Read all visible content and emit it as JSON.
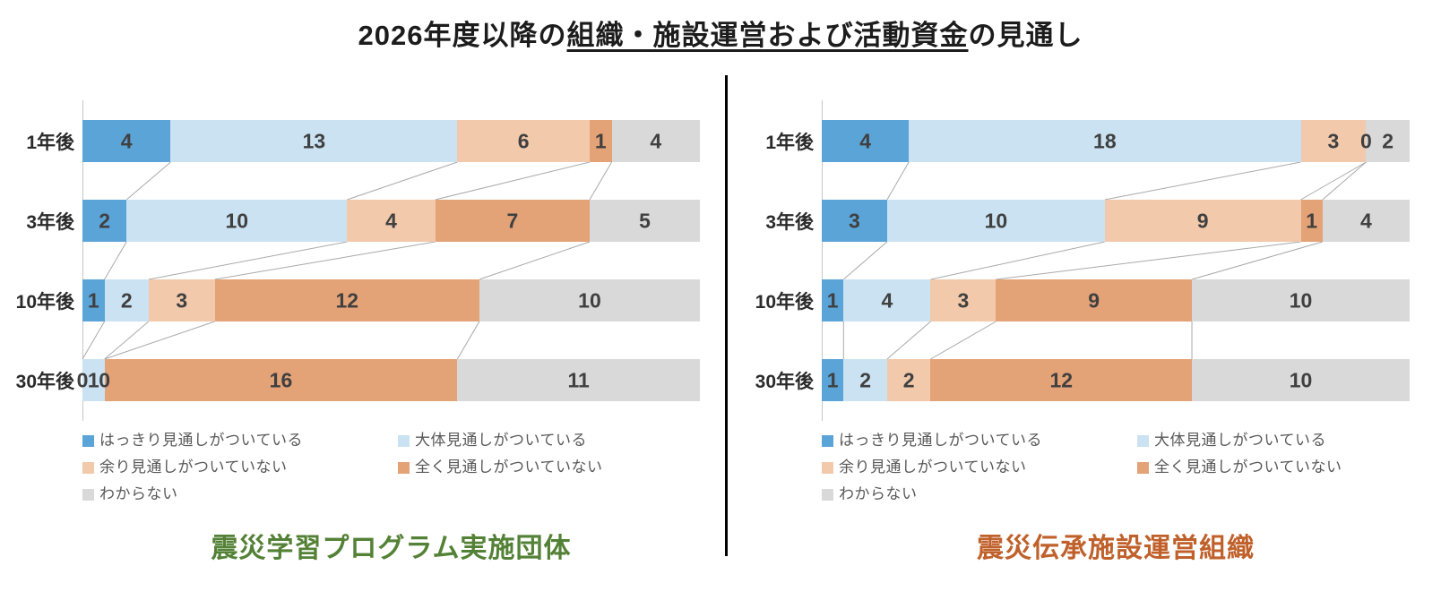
{
  "title": {
    "prefix": "2026年度以降の",
    "underlined": "組織・施設運営および活動資金",
    "suffix": "の見通し"
  },
  "legend": {
    "items": [
      {
        "label": "はっきり見通しがついている",
        "color": "#5BA4D8"
      },
      {
        "label": "大体見通しがついている",
        "color": "#CAE2F2"
      },
      {
        "label": "余り見通しがついていない",
        "color": "#F2C9AB"
      },
      {
        "label": "全く見通しがついていない",
        "color": "#E4A277"
      },
      {
        "label": "わからない",
        "color": "#D9D9D9"
      }
    ]
  },
  "chart_data": [
    {
      "type": "bar",
      "orientation": "horizontal",
      "stacked": true,
      "title": "震災学習プログラム実施団体",
      "title_color": "#538135",
      "categories": [
        "1年後",
        "3年後",
        "10年後",
        "30年後"
      ],
      "series": [
        {
          "name": "はっきり見通しがついている",
          "color": "#5BA4D8",
          "values": [
            4,
            2,
            1,
            0
          ]
        },
        {
          "name": "大体見通しがついている",
          "color": "#CAE2F2",
          "values": [
            13,
            10,
            2,
            1
          ]
        },
        {
          "name": "余り見通しがついていない",
          "color": "#F2C9AB",
          "values": [
            6,
            4,
            3,
            0
          ]
        },
        {
          "name": "全く見通しがついていない",
          "color": "#E4A277",
          "values": [
            1,
            7,
            12,
            16
          ]
        },
        {
          "name": "わからない",
          "color": "#D9D9D9",
          "values": [
            4,
            5,
            10,
            11
          ]
        }
      ],
      "row_totals": [
        28,
        28,
        28,
        28
      ],
      "data_labels": true,
      "series_connector_lines": true,
      "legend_position": "bottom"
    },
    {
      "type": "bar",
      "orientation": "horizontal",
      "stacked": true,
      "title": "震災伝承施設運営組織",
      "title_color": "#C0612B",
      "categories": [
        "1年後",
        "3年後",
        "10年後",
        "30年後"
      ],
      "series": [
        {
          "name": "はっきり見通しがついている",
          "color": "#5BA4D8",
          "values": [
            4,
            3,
            1,
            1
          ]
        },
        {
          "name": "大体見通しがついている",
          "color": "#CAE2F2",
          "values": [
            18,
            10,
            4,
            2
          ]
        },
        {
          "name": "余り見通しがついていない",
          "color": "#F2C9AB",
          "values": [
            3,
            9,
            3,
            2
          ]
        },
        {
          "name": "全く見通しがついていない",
          "color": "#E4A277",
          "values": [
            0,
            1,
            9,
            12
          ]
        },
        {
          "name": "わからない",
          "color": "#D9D9D9",
          "values": [
            2,
            4,
            10,
            10
          ]
        }
      ],
      "row_totals": [
        27,
        27,
        27,
        27
      ],
      "data_labels": true,
      "series_connector_lines": true,
      "legend_position": "bottom"
    }
  ]
}
